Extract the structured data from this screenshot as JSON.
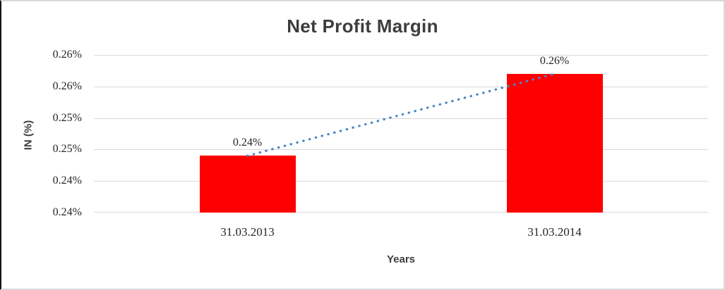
{
  "chart": {
    "title": "Net Profit Margin",
    "x_axis_title": "Years",
    "y_axis_title": "IN (%)"
  },
  "chart_data": {
    "type": "bar",
    "title": "Net Profit Margin",
    "xlabel": "Years",
    "ylabel": "IN (%)",
    "categories": [
      "31.03.2013",
      "31.03.2014"
    ],
    "series": [
      {
        "name": "Net Profit Margin",
        "values": [
          0.244,
          0.257
        ],
        "data_labels": [
          "0.24%",
          "0.26%"
        ]
      }
    ],
    "y_ticks_bottom_to_top": [
      "0.24%",
      "0.24%",
      "0.25%",
      "0.25%",
      "0.26%",
      "0.26%"
    ],
    "ylim": [
      0.235,
      0.26
    ],
    "grid": true,
    "legend": false,
    "trendline": {
      "style": "dotted",
      "connects": [
        "31.03.2013",
        "31.03.2014"
      ]
    },
    "colors": {
      "bar": "#FF0000",
      "trendline": "#4A86C8",
      "gridline": "#D9D9D9",
      "heading_text": "#3D3D3D",
      "tick_text": "#262626"
    }
  }
}
